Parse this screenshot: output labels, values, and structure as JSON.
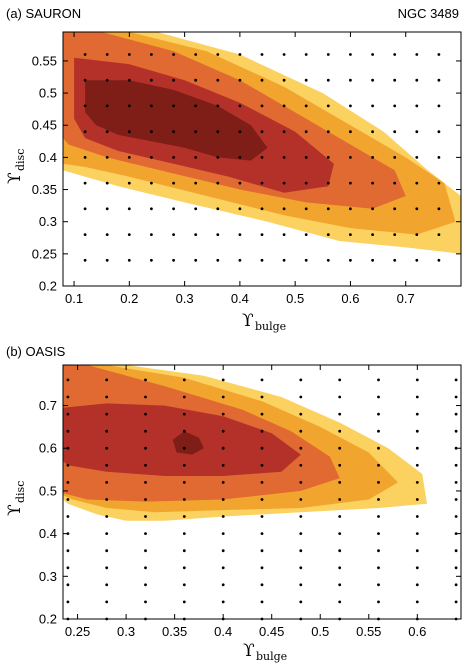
{
  "figure": {
    "object_label": "NGC 3489"
  },
  "chart_data": [
    {
      "type": "contour",
      "panel_label": "(a) SAURON",
      "xlabel": {
        "symbol": "ϒ",
        "subscript": "bulge"
      },
      "ylabel": {
        "symbol": "ϒ",
        "subscript": "disc"
      },
      "xlim": [
        0.08,
        0.8
      ],
      "ylim": [
        0.2,
        0.595
      ],
      "xticks": [
        0.1,
        0.2,
        0.3,
        0.4,
        0.5,
        0.6,
        0.7
      ],
      "yticks": [
        0.2,
        0.25,
        0.3,
        0.35,
        0.4,
        0.45,
        0.5,
        0.55
      ],
      "tick_labels_x": [
        "0.1",
        "0.2",
        "0.3",
        "0.4",
        "0.5",
        "0.6",
        "0.7"
      ],
      "tick_labels_y": [
        "0.2",
        "0.25",
        "0.3",
        "0.35",
        "0.4",
        "0.45",
        "0.5",
        "0.55"
      ],
      "grid_x": [
        0.12,
        0.16,
        0.2,
        0.24,
        0.28,
        0.32,
        0.36,
        0.4,
        0.44,
        0.48,
        0.52,
        0.56,
        0.6,
        0.64,
        0.68,
        0.72,
        0.76
      ],
      "grid_y": [
        0.24,
        0.28,
        0.32,
        0.36,
        0.4,
        0.44,
        0.48,
        0.52,
        0.56
      ],
      "levels": [
        {
          "color": "#fbd160",
          "polygon": [
            [
              0.08,
              0.595
            ],
            [
              0.25,
              0.595
            ],
            [
              0.4,
              0.56
            ],
            [
              0.55,
              0.5
            ],
            [
              0.66,
              0.44
            ],
            [
              0.74,
              0.38
            ],
            [
              0.8,
              0.34
            ],
            [
              0.8,
              0.25
            ],
            [
              0.7,
              0.26
            ],
            [
              0.58,
              0.27
            ],
            [
              0.45,
              0.3
            ],
            [
              0.3,
              0.33
            ],
            [
              0.18,
              0.355
            ],
            [
              0.1,
              0.375
            ],
            [
              0.08,
              0.38
            ]
          ]
        },
        {
          "color": "#f2a52e",
          "polygon": [
            [
              0.08,
              0.595
            ],
            [
              0.2,
              0.595
            ],
            [
              0.34,
              0.565
            ],
            [
              0.48,
              0.51
            ],
            [
              0.6,
              0.45
            ],
            [
              0.7,
              0.4
            ],
            [
              0.77,
              0.36
            ],
            [
              0.79,
              0.3
            ],
            [
              0.72,
              0.28
            ],
            [
              0.6,
              0.29
            ],
            [
              0.48,
              0.31
            ],
            [
              0.34,
              0.34
            ],
            [
              0.2,
              0.37
            ],
            [
              0.12,
              0.385
            ],
            [
              0.08,
              0.39
            ]
          ]
        },
        {
          "color": "#e06a31",
          "polygon": [
            [
              0.08,
              0.595
            ],
            [
              0.15,
              0.595
            ],
            [
              0.28,
              0.565
            ],
            [
              0.4,
              0.52
            ],
            [
              0.52,
              0.46
            ],
            [
              0.62,
              0.41
            ],
            [
              0.68,
              0.38
            ],
            [
              0.7,
              0.34
            ],
            [
              0.64,
              0.32
            ],
            [
              0.52,
              0.33
            ],
            [
              0.4,
              0.35
            ],
            [
              0.28,
              0.375
            ],
            [
              0.16,
              0.4
            ],
            [
              0.09,
              0.42
            ],
            [
              0.08,
              0.43
            ]
          ]
        },
        {
          "color": "#b4312a",
          "polygon": [
            [
              0.1,
              0.555
            ],
            [
              0.2,
              0.545
            ],
            [
              0.3,
              0.52
            ],
            [
              0.4,
              0.485
            ],
            [
              0.5,
              0.44
            ],
            [
              0.57,
              0.39
            ],
            [
              0.56,
              0.355
            ],
            [
              0.48,
              0.345
            ],
            [
              0.38,
              0.37
            ],
            [
              0.28,
              0.39
            ],
            [
              0.18,
              0.41
            ],
            [
              0.12,
              0.43
            ],
            [
              0.1,
              0.46
            ]
          ]
        },
        {
          "color": "#7e1e17",
          "polygon": [
            [
              0.12,
              0.52
            ],
            [
              0.2,
              0.52
            ],
            [
              0.28,
              0.505
            ],
            [
              0.36,
              0.48
            ],
            [
              0.42,
              0.45
            ],
            [
              0.45,
              0.415
            ],
            [
              0.42,
              0.395
            ],
            [
              0.36,
              0.4
            ],
            [
              0.3,
              0.415
            ],
            [
              0.24,
              0.425
            ],
            [
              0.18,
              0.435
            ],
            [
              0.14,
              0.45
            ],
            [
              0.12,
              0.47
            ]
          ]
        }
      ]
    },
    {
      "type": "contour",
      "panel_label": "(b) OASIS",
      "xlabel": {
        "symbol": "ϒ",
        "subscript": "bulge"
      },
      "ylabel": {
        "symbol": "ϒ",
        "subscript": "disc"
      },
      "xlim": [
        0.235,
        0.645
      ],
      "ylim": [
        0.2,
        0.795
      ],
      "xticks": [
        0.25,
        0.3,
        0.35,
        0.4,
        0.45,
        0.5,
        0.55,
        0.6
      ],
      "yticks": [
        0.2,
        0.3,
        0.4,
        0.5,
        0.6,
        0.7
      ],
      "tick_labels_x": [
        "0.25",
        "0.3",
        "0.35",
        "0.4",
        "0.45",
        "0.5",
        "0.55",
        "0.6"
      ],
      "tick_labels_y": [
        "0.2",
        "0.3",
        "0.4",
        "0.5",
        "0.6",
        "0.7"
      ],
      "grid_x": [
        0.24,
        0.28,
        0.32,
        0.36,
        0.4,
        0.44,
        0.48,
        0.52,
        0.56,
        0.6,
        0.64
      ],
      "grid_y": [
        0.2,
        0.24,
        0.28,
        0.32,
        0.36,
        0.4,
        0.44,
        0.48,
        0.52,
        0.56,
        0.6,
        0.64,
        0.68,
        0.72,
        0.76
      ],
      "levels": [
        {
          "color": "#fbd160",
          "polygon": [
            [
              0.235,
              0.795
            ],
            [
              0.3,
              0.795
            ],
            [
              0.38,
              0.77
            ],
            [
              0.46,
              0.72
            ],
            [
              0.52,
              0.66
            ],
            [
              0.57,
              0.6
            ],
            [
              0.605,
              0.54
            ],
            [
              0.61,
              0.47
            ],
            [
              0.56,
              0.46
            ],
            [
              0.48,
              0.45
            ],
            [
              0.4,
              0.44
            ],
            [
              0.34,
              0.43
            ],
            [
              0.3,
              0.43
            ],
            [
              0.27,
              0.445
            ],
            [
              0.24,
              0.47
            ],
            [
              0.235,
              0.48
            ]
          ]
        },
        {
          "color": "#f2a52e",
          "polygon": [
            [
              0.235,
              0.795
            ],
            [
              0.28,
              0.795
            ],
            [
              0.36,
              0.765
            ],
            [
              0.44,
              0.71
            ],
            [
              0.5,
              0.65
            ],
            [
              0.55,
              0.59
            ],
            [
              0.58,
              0.52
            ],
            [
              0.55,
              0.48
            ],
            [
              0.48,
              0.46
            ],
            [
              0.4,
              0.455
            ],
            [
              0.33,
              0.45
            ],
            [
              0.28,
              0.46
            ],
            [
              0.245,
              0.48
            ],
            [
              0.235,
              0.49
            ]
          ]
        },
        {
          "color": "#e06a31",
          "polygon": [
            [
              0.235,
              0.795
            ],
            [
              0.26,
              0.795
            ],
            [
              0.34,
              0.745
            ],
            [
              0.42,
              0.69
            ],
            [
              0.47,
              0.64
            ],
            [
              0.51,
              0.58
            ],
            [
              0.52,
              0.53
            ],
            [
              0.48,
              0.5
            ],
            [
              0.4,
              0.48
            ],
            [
              0.32,
              0.475
            ],
            [
              0.26,
              0.48
            ],
            [
              0.235,
              0.495
            ]
          ]
        },
        {
          "color": "#b4312a",
          "polygon": [
            [
              0.235,
              0.695
            ],
            [
              0.28,
              0.705
            ],
            [
              0.34,
              0.7
            ],
            [
              0.4,
              0.675
            ],
            [
              0.45,
              0.635
            ],
            [
              0.48,
              0.585
            ],
            [
              0.46,
              0.545
            ],
            [
              0.4,
              0.535
            ],
            [
              0.34,
              0.535
            ],
            [
              0.28,
              0.545
            ],
            [
              0.24,
              0.56
            ],
            [
              0.235,
              0.57
            ]
          ]
        },
        {
          "color": "#7e1e17",
          "polygon": [
            [
              0.348,
              0.62
            ],
            [
              0.36,
              0.64
            ],
            [
              0.375,
              0.625
            ],
            [
              0.38,
              0.6
            ],
            [
              0.368,
              0.585
            ],
            [
              0.352,
              0.59
            ]
          ]
        }
      ]
    }
  ]
}
